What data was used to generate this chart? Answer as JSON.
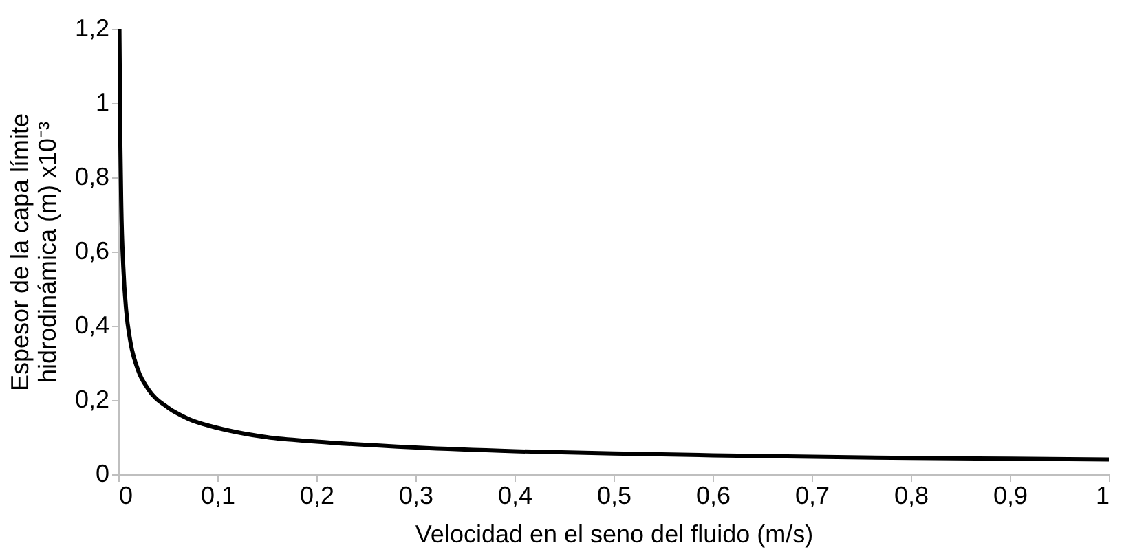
{
  "chart_data": {
    "type": "line",
    "xlabel": "Velocidad en el seno del fluido (m/s)",
    "ylabel": "Espesor de la capa límite\nhidrodinámica (m) x10⁻³",
    "x": [
      0.0011,
      0.002,
      0.003,
      0.005,
      0.008,
      0.012,
      0.02,
      0.03,
      0.05,
      0.07,
      0.1,
      0.15,
      0.2,
      0.3,
      0.4,
      0.5,
      0.6,
      0.7,
      0.8,
      0.9,
      1
    ],
    "series": [
      {
        "color": "#000000",
        "values": [
          1.2,
          0.9,
          0.72,
          0.56,
          0.44,
          0.36,
          0.28,
          0.23,
          0.18,
          0.15,
          0.125,
          0.1,
          0.088,
          0.072,
          0.062,
          0.056,
          0.051,
          0.047,
          0.044,
          0.042,
          0.04
        ]
      }
    ],
    "xlim": [
      0,
      1
    ],
    "ylim": [
      0,
      1.2
    ],
    "xticks": [
      0,
      {
        "value": 0.1,
        "label": "0,1"
      },
      {
        "value": 0.2,
        "label": "0,2"
      },
      {
        "value": 0.3,
        "label": "0,3"
      },
      {
        "value": 0.4,
        "label": "0,4"
      },
      {
        "value": 0.5,
        "label": "0,5"
      },
      {
        "value": 0.6,
        "label": "0,6"
      },
      {
        "value": 0.7,
        "label": "0,7"
      },
      {
        "value": 0.8,
        "label": "0,8"
      },
      {
        "value": 0.9,
        "label": "0,9"
      },
      1
    ],
    "yticks": [
      0,
      {
        "value": 0.2,
        "label": "0,2"
      },
      {
        "value": 0.4,
        "label": "0,4"
      },
      {
        "value": 0.6,
        "label": "0,6"
      },
      {
        "value": 0.8,
        "label": "0,8"
      },
      1,
      {
        "value": 1.2,
        "label": "1,2"
      }
    ],
    "grid": false,
    "marker": "none",
    "line_style": "solid"
  }
}
